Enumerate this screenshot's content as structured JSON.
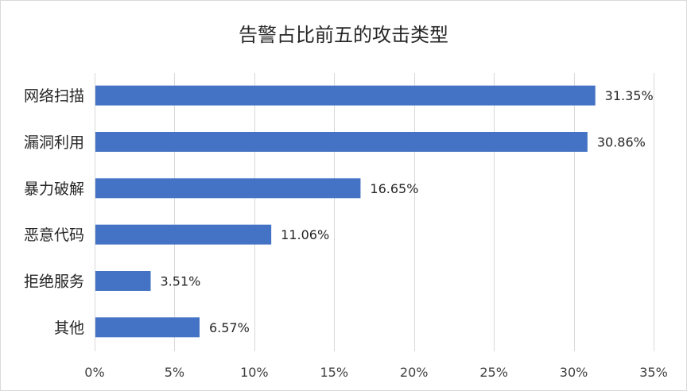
{
  "chart_data": {
    "type": "bar",
    "orientation": "horizontal",
    "title": "告警占比前五的攻击类型",
    "categories": [
      "网络扫描",
      "漏洞利用",
      "暴力破解",
      "恶意代码",
      "拒绝服务",
      "其他"
    ],
    "values": [
      31.35,
      30.86,
      16.65,
      11.06,
      3.51,
      6.57
    ],
    "data_labels": [
      "31.35%",
      "30.86%",
      "16.65%",
      "11.06%",
      "3.51%",
      "6.57%"
    ],
    "xlim": [
      0,
      35
    ],
    "xticks": [
      0,
      5,
      10,
      15,
      20,
      25,
      30,
      35
    ],
    "xtick_labels": [
      "0%",
      "5%",
      "10%",
      "15%",
      "20%",
      "25%",
      "30%",
      "35%"
    ],
    "grid": "vertical",
    "legend": "none",
    "colors": {
      "bar": "#4472C4",
      "grid": "#d9d9d9",
      "text": "#262626",
      "axis_text": "#404040"
    }
  }
}
